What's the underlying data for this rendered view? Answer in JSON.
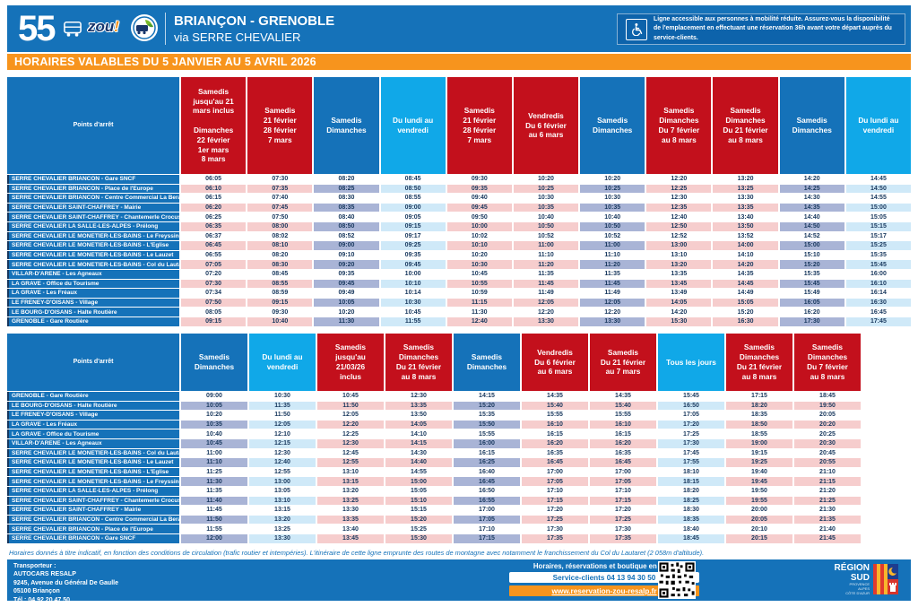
{
  "header": {
    "line_number": "55",
    "zou_text": "zou",
    "zou_bang": "!",
    "title": "BRIANÇON - GRENOBLE",
    "subtitle": "via SERRE CHEVALIER",
    "accessibility_note": "Ligne accessible aux personnes à mobilité réduite. Assurez-vous la disponibilité de l'emplacement en effectuant une réservation 36h avant votre départ auprès du service-clients."
  },
  "banner": "HORAIRES VALABLES DU 5 JANVIER AU 5 AVRIL 2026",
  "colors": {
    "main_blue": "#1572B9",
    "red": "#C3101C",
    "cyan": "#10A8E8",
    "orange": "#F7941D",
    "row_pink": "#F6CDCD",
    "row_periwinkle": "#A9B4D6",
    "row_pale_cyan": "#CFE9F8",
    "time_text": "#17375D"
  },
  "tables": [
    {
      "direction": "Briançon vers Grenoble",
      "stops_header": "Points d'arrêt",
      "stops": [
        "SERRE CHEVALIER BRIANCON - Gare SNCF",
        "SERRE CHEVALIER BRIANCON - Place de l'Europe",
        "SERRE CHEVALIER BRIANCON - Centre Commercial La Berard",
        "SERRE CHEVALIER SAINT-CHAFFREY - Mairie",
        "SERRE CHEVALIER SAINT-CHAFFREY - Chantemerle Crocus",
        "SERRE CHEVALIER LA SALLE-LES-ALPES - Prélong",
        "SERRE CHEVALIER LE MONETIER-LES-BAINS - Le Freyssinet",
        "SERRE CHEVALIER LE MONETIER-LES-BAINS - L'Eglise",
        "SERRE CHEVALIER LE MONETIER-LES-BAINS - Le Lauzet",
        "SERRE CHEVALIER LE MONETIER-LES-BAINS - Col du Lautaret",
        "VILLAR-D'ARENE - Les Agneaux",
        "LA GRAVE - Office du Tourisme",
        "LA GRAVE - Les Fréaux",
        "LE FRENEY-D'OISANS - Village",
        "LE BOURG-D'OISANS - Halte Routière",
        "GRENOBLE - Gare Routière"
      ],
      "columns": [
        {
          "label": "Samedis\njusqu'au 21\nmars inclus\n\nDimanches\n22 février\n1er mars\n8 mars",
          "color": "red",
          "times": [
            "06:05",
            "06:10",
            "06:15",
            "06:20",
            "06:25",
            "06:35",
            "06:37",
            "06:45",
            "06:55",
            "07:05",
            "07:20",
            "07:30",
            "07:34",
            "07:50",
            "08:05",
            "09:15"
          ]
        },
        {
          "label": "Samedis\n21 février\n28 février\n7 mars",
          "color": "red",
          "times": [
            "07:30",
            "07:35",
            "07:40",
            "07:45",
            "07:50",
            "08:00",
            "08:02",
            "08:10",
            "08:20",
            "08:30",
            "08:45",
            "08:55",
            "08:59",
            "09:15",
            "09:30",
            "10:40"
          ]
        },
        {
          "label": "Samedis\nDimanches",
          "color": "blue",
          "times": [
            "08:20",
            "08:25",
            "08:30",
            "08:35",
            "08:40",
            "08:50",
            "08:52",
            "09:00",
            "09:10",
            "09:20",
            "09:35",
            "09:45",
            "09:49",
            "10:05",
            "10:20",
            "11:30"
          ]
        },
        {
          "label": "Du lundi au\nvendredi",
          "color": "cyan",
          "times": [
            "08:45",
            "08:50",
            "08:55",
            "09:00",
            "09:05",
            "09:15",
            "09:17",
            "09:25",
            "09:35",
            "09:45",
            "10:00",
            "10:10",
            "10:14",
            "10:30",
            "10:45",
            "11:55"
          ]
        },
        {
          "label": "Samedis\n21 février\n28 février\n7 mars",
          "color": "red",
          "times": [
            "09:30",
            "09:35",
            "09:40",
            "09:45",
            "09:50",
            "10:00",
            "10:02",
            "10:10",
            "10:20",
            "10:30",
            "10:45",
            "10:55",
            "10:59",
            "11:15",
            "11:30",
            "12:40"
          ]
        },
        {
          "label": "Vendredis\nDu 6 février\nau 6 mars",
          "color": "red",
          "times": [
            "10:20",
            "10:25",
            "10:30",
            "10:35",
            "10:40",
            "10:50",
            "10:52",
            "11:00",
            "11:10",
            "11:20",
            "11:35",
            "11:45",
            "11:49",
            "12:05",
            "12:20",
            "13:30"
          ]
        },
        {
          "label": "Samedis\nDimanches",
          "color": "blue",
          "times": [
            "10:20",
            "10:25",
            "10:30",
            "10:35",
            "10:40",
            "10:50",
            "10:52",
            "11:00",
            "11:10",
            "11:20",
            "11:35",
            "11:45",
            "11:49",
            "12:05",
            "12:20",
            "13:30"
          ]
        },
        {
          "label": "Samedis\nDimanches\nDu 7 février\nau 8 mars",
          "color": "red",
          "times": [
            "12:20",
            "12:25",
            "12:30",
            "12:35",
            "12:40",
            "12:50",
            "12:52",
            "13:00",
            "13:10",
            "13:20",
            "13:35",
            "13:45",
            "13:49",
            "14:05",
            "14:20",
            "15:30"
          ]
        },
        {
          "label": "Samedis\nDimanches\nDu 21 février\nau 8 mars",
          "color": "red",
          "times": [
            "13:20",
            "13:25",
            "13:30",
            "13:35",
            "13:40",
            "13:50",
            "13:52",
            "14:00",
            "14:10",
            "14:20",
            "14:35",
            "14:45",
            "14:49",
            "15:05",
            "15:20",
            "16:30"
          ]
        },
        {
          "label": "Samedis\nDimanches",
          "color": "blue",
          "times": [
            "14:20",
            "14:25",
            "14:30",
            "14:35",
            "14:40",
            "14:50",
            "14:52",
            "15:00",
            "15:10",
            "15:20",
            "15:35",
            "15:45",
            "15:49",
            "16:05",
            "16:20",
            "17:30"
          ]
        },
        {
          "label": "Du lundi au\nvendredi",
          "color": "cyan",
          "times": [
            "14:45",
            "14:50",
            "14:55",
            "15:00",
            "15:05",
            "15:15",
            "15:17",
            "15:25",
            "15:35",
            "15:45",
            "16:00",
            "16:10",
            "16:14",
            "16:30",
            "16:45",
            "17:45"
          ]
        }
      ]
    },
    {
      "direction": "Grenoble vers Briançon",
      "stops_header": "Points d'arrêt",
      "stops": [
        "GRENOBLE - Gare Routière",
        "LE BOURG-D'OISANS - Halte Routière",
        "LE FRENEY-D'OISANS - Village",
        "LA GRAVE - Les Fréaux",
        "LA GRAVE - Office du Tourisme",
        "VILLAR-D'ARENE - Les Agneaux",
        "SERRE CHEVALIER LE MONETIER-LES-BAINS - Col du Lautaret",
        "SERRE CHEVALIER LE MONETIER-LES-BAINS - Le Lauzet",
        "SERRE CHEVALIER LE MONETIER-LES-BAINS - L'Eglise",
        "SERRE CHEVALIER LE MONETIER-LES-BAINS - Le Freyssinet",
        "SERRE CHEVALIER LA SALLE-LES-ALPES - Prélong",
        "SERRE CHEVALIER SAINT-CHAFFREY - Chantemerle Crocus",
        "SERRE CHEVALIER SAINT-CHAFFREY - Mairie",
        "SERRE CHEVALIER BRIANCON - Centre Commercial La Berard",
        "SERRE CHEVALIER BRIANCON - Place de l'Europe",
        "SERRE CHEVALIER BRIANCON - Gare SNCF"
      ],
      "columns": [
        {
          "label": "Samedis\nDimanches",
          "color": "blue",
          "times": [
            "09:00",
            "10:05",
            "10:20",
            "10:35",
            "10:40",
            "10:45",
            "11:00",
            "11:10",
            "11:25",
            "11:30",
            "11:35",
            "11:40",
            "11:45",
            "11:50",
            "11:55",
            "12:00"
          ]
        },
        {
          "label": "Du lundi au\nvendredi",
          "color": "cyan",
          "times": [
            "10:30",
            "11:35",
            "11:50",
            "12:05",
            "12:10",
            "12:15",
            "12:30",
            "12:40",
            "12:55",
            "13:00",
            "13:05",
            "13:10",
            "13:15",
            "13:20",
            "13:25",
            "13:30"
          ]
        },
        {
          "label": "Samedis\njusqu'au\n21/03/26\ninclus",
          "color": "red",
          "times": [
            "10:45",
            "11:50",
            "12:05",
            "12:20",
            "12:25",
            "12:30",
            "12:45",
            "12:55",
            "13:10",
            "13:15",
            "13:20",
            "13:25",
            "13:30",
            "13:35",
            "13:40",
            "13:45"
          ]
        },
        {
          "label": "Samedis\nDimanches\nDu 21 février\nau 8 mars",
          "color": "red",
          "times": [
            "12:30",
            "13:35",
            "13:50",
            "14:05",
            "14:10",
            "14:15",
            "14:30",
            "14:40",
            "14:55",
            "15:00",
            "15:05",
            "15:10",
            "15:15",
            "15:20",
            "15:25",
            "15:30"
          ]
        },
        {
          "label": "Samedis\nDimanches",
          "color": "blue",
          "times": [
            "14:15",
            "15:20",
            "15:35",
            "15:50",
            "15:55",
            "16:00",
            "16:15",
            "16:25",
            "16:40",
            "16:45",
            "16:50",
            "16:55",
            "17:00",
            "17:05",
            "17:10",
            "17:15"
          ]
        },
        {
          "label": "Vendredis\nDu 6 février\nau 6 mars",
          "color": "red",
          "times": [
            "14:35",
            "15:40",
            "15:55",
            "16:10",
            "16:15",
            "16:20",
            "16:35",
            "16:45",
            "17:00",
            "17:05",
            "17:10",
            "17:15",
            "17:20",
            "17:25",
            "17:30",
            "17:35"
          ]
        },
        {
          "label": "Samedis\nDu 21 février\nau 7 mars",
          "color": "red",
          "times": [
            "14:35",
            "15:40",
            "15:55",
            "16:10",
            "16:15",
            "16:20",
            "16:35",
            "16:45",
            "17:00",
            "17:05",
            "17:10",
            "17:15",
            "17:20",
            "17:25",
            "17:30",
            "17:35"
          ]
        },
        {
          "label": "Tous les jours",
          "color": "cyan",
          "times": [
            "15:45",
            "16:50",
            "17:05",
            "17:20",
            "17:25",
            "17:30",
            "17:45",
            "17:55",
            "18:10",
            "18:15",
            "18:20",
            "18:25",
            "18:30",
            "18:35",
            "18:40",
            "18:45"
          ]
        },
        {
          "label": "Samedis\nDimanches\nDu 21 février\nau 8 mars",
          "color": "red",
          "times": [
            "17:15",
            "18:20",
            "18:35",
            "18:50",
            "18:55",
            "19:00",
            "19:15",
            "19:25",
            "19:40",
            "19:45",
            "19:50",
            "19:55",
            "20:00",
            "20:05",
            "20:10",
            "20:15"
          ]
        },
        {
          "label": "Samedis\nDimanches\nDu 7 février\nau 8 mars",
          "color": "red",
          "times": [
            "18:45",
            "19:50",
            "20:05",
            "20:20",
            "20:25",
            "20:30",
            "20:45",
            "20:55",
            "21:10",
            "21:15",
            "21:20",
            "21:25",
            "21:30",
            "21:35",
            "21:40",
            "21:45"
          ]
        }
      ]
    }
  ],
  "footer": {
    "note": "Horaires donnés à titre indicatif, en fonction des conditions de circulation (trafic routier et intempéries). L'itinéraire de cette ligne emprunte des routes de montagne avec notamment le franchissement du Col du Lautaret (2 058m d'altitude).",
    "transporteur_label": "Transporteur :",
    "transporteur_name": "AUTOCARS RESALP",
    "transporteur_address": "9245, Avenue du Général De Gaulle",
    "transporteur_city": "05100 Briançon",
    "transporteur_tel": "Tél : 04 92 20 47 50",
    "booking_title": "Horaires, réservations et boutique en ligne",
    "service_clients": "Service-clients 04 13 94 30 50",
    "website": "www.reservation-zou-resalp.fr",
    "region_name": "RÉGION\nSUD",
    "region_sub": "PROVENCE\nALPES\nCÔTE D'AZUR"
  }
}
